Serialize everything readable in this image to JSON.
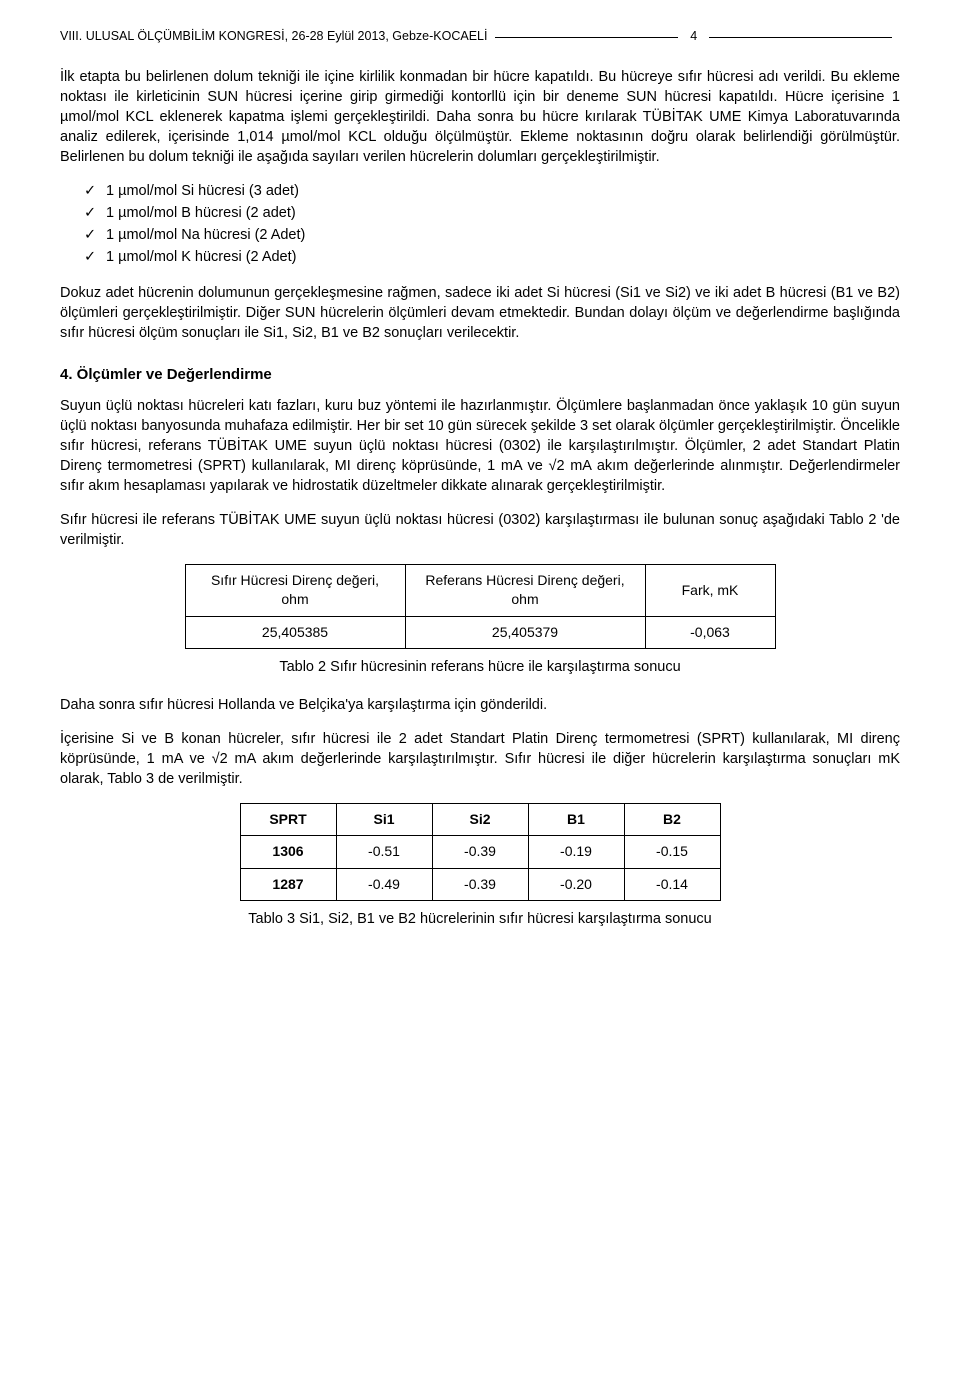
{
  "header": {
    "conference": "VIII. ULUSAL ÖLÇÜMBİLİM KONGRESİ, 26-28 Eylül 2013, Gebze-KOCAELİ",
    "page_number": "4"
  },
  "paragraphs": {
    "p1": "İlk etapta bu belirlenen dolum tekniği ile içine kirlilik konmadan bir hücre kapatıldı. Bu hücreye sıfır hücresi adı verildi. Bu ekleme noktası ile kirleticinin SUN hücresi içerine girip girmediği kontorllü için bir deneme SUN hücresi kapatıldı. Hücre içerisine 1 µmol/mol KCL eklenerek kapatma işlemi gerçekleştirildi. Daha sonra bu hücre kırılarak TÜBİTAK UME Kimya Laboratuvarında analiz edilerek, içerisinde 1,014 µmol/mol KCL olduğu ölçülmüştür. Ekleme noktasının doğru olarak belirlendiği görülmüştür. Belirlenen bu dolum tekniği ile aşağıda sayıları verilen hücrelerin dolumları gerçekleştirilmiştir.",
    "p2": "Dokuz adet hücrenin dolumunun gerçekleşmesine rağmen, sadece iki adet Si hücresi (Si1 ve Si2) ve iki adet B hücresi (B1 ve B2) ölçümleri gerçekleştirilmiştir. Diğer SUN hücrelerin ölçümleri devam etmektedir. Bundan dolayı ölçüm ve değerlendirme başlığında sıfır hücresi ölçüm sonuçları ile Si1, Si2, B1 ve B2 sonuçları verilecektir.",
    "p3": "Suyun üçlü noktası hücreleri katı fazları, kuru buz yöntemi ile hazırlanmıştır. Ölçümlere başlanmadan önce yaklaşık 10 gün suyun üçlü noktası banyosunda muhafaza edilmiştir. Her bir set 10 gün sürecek şekilde 3 set olarak ölçümler gerçekleştirilmiştir. Öncelikle sıfır hücresi, referans TÜBİTAK UME suyun üçlü noktası hücresi (0302) ile karşılaştırılmıştır. Ölçümler, 2 adet Standart Platin Direnç termometresi (SPRT) kullanılarak, MI direnç köprüsünde, 1 mA ve √2 mA akım değerlerinde alınmıştır. Değerlendirmeler sıfır akım hesaplaması yapılarak ve hidrostatik düzeltmeler dikkate alınarak gerçekleştirilmiştir.",
    "p4": "Sıfır hücresi ile referans TÜBİTAK UME suyun üçlü noktası hücresi (0302) karşılaştırması ile bulunan sonuç aşağıdaki Tablo 2 'de verilmiştir.",
    "p5": "Daha sonra sıfır hücresi Hollanda ve Belçika'ya karşılaştırma için gönderildi.",
    "p6": "İçerisine Si ve B konan hücreler, sıfır hücresi ile 2 adet Standart Platin Direnç termometresi (SPRT) kullanılarak, MI direnç köprüsünde, 1 mA ve √2 mA akım değerlerinde karşılaştırılmıştır. Sıfır hücresi ile diğer hücrelerin karşılaştırma sonuçları mK olarak, Tablo 3 de verilmiştir."
  },
  "checklist": {
    "i1": "1 µmol/mol Si hücresi (3 adet)",
    "i2": "1 µmol/mol B hücresi (2 adet)",
    "i3": "1 µmol/mol Na hücresi (2 Adet)",
    "i4": "1 µmol/mol K hücresi (2 Adet)"
  },
  "section4_title": "4. Ölçümler ve Değerlendirme",
  "table2": {
    "headers": {
      "c1": "Sıfır Hücresi Direnç değeri, ohm",
      "c2": "Referans Hücresi Direnç değeri, ohm",
      "c3": "Fark, mK"
    },
    "row": {
      "c1": "25,405385",
      "c2": "25,405379",
      "c3": "-0,063"
    },
    "caption": "Tablo 2 Sıfır hücresinin referans hücre ile karşılaştırma sonucu"
  },
  "table3": {
    "headers": {
      "c0": "SPRT",
      "c1": "Si1",
      "c2": "Si2",
      "c3": "B1",
      "c4": "B2"
    },
    "rows": [
      {
        "c0": "1306",
        "c1": "-0.51",
        "c2": "-0.39",
        "c3": "-0.19",
        "c4": "-0.15"
      },
      {
        "c0": "1287",
        "c1": "-0.49",
        "c2": "-0.39",
        "c3": "-0.20",
        "c4": "-0.14"
      }
    ],
    "caption": "Tablo 3 Si1, Si2, B1 ve B2 hücrelerinin sıfır hücresi karşılaştırma sonucu"
  }
}
